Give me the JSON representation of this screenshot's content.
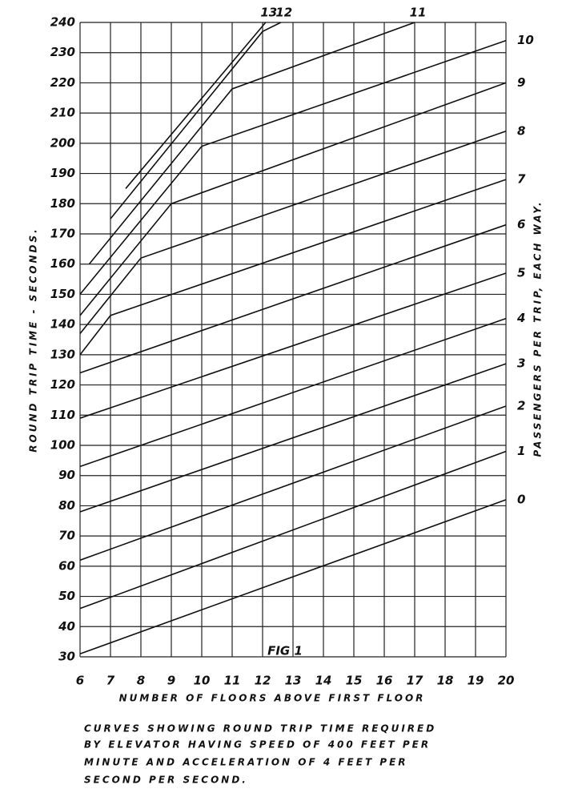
{
  "chart_data": {
    "type": "line",
    "annotation": "FIG 1",
    "x_label": "NUMBER OF FLOORS ABOVE FIRST FLOOR",
    "y_label": "ROUND TRIP TIME - SECONDS.",
    "y2_label": "PASSENGERS PER TRIP, EACH WAY.",
    "caption": [
      "CURVES SHOWING ROUND TRIP TIME REQUIRED",
      "BY ELEVATOR HAVING SPEED OF 400 FEET PER",
      "MINUTE AND ACCELERATION OF 4 FEET PER",
      "SECOND PER SECOND."
    ],
    "xlim": [
      6,
      20
    ],
    "ylim": [
      30,
      240
    ],
    "xticks": [
      6,
      7,
      8,
      9,
      10,
      11,
      12,
      13,
      14,
      15,
      16,
      17,
      18,
      19,
      20
    ],
    "yticks": [
      30,
      40,
      50,
      60,
      70,
      80,
      90,
      100,
      110,
      120,
      130,
      140,
      150,
      160,
      170,
      180,
      190,
      200,
      210,
      220,
      230,
      240
    ],
    "grid": true,
    "series": [
      {
        "name": "0",
        "color": "#111111",
        "x": [
          6,
          20
        ],
        "values": [
          31,
          82
        ]
      },
      {
        "name": "1",
        "color": "#111111",
        "x": [
          6,
          20
        ],
        "values": [
          46,
          98
        ]
      },
      {
        "name": "2",
        "color": "#111111",
        "x": [
          6,
          20
        ],
        "values": [
          62,
          113
        ]
      },
      {
        "name": "3",
        "color": "#111111",
        "x": [
          6,
          20
        ],
        "values": [
          78,
          127
        ]
      },
      {
        "name": "4",
        "color": "#111111",
        "x": [
          6,
          20
        ],
        "values": [
          93,
          142
        ]
      },
      {
        "name": "5",
        "color": "#111111",
        "x": [
          6,
          20
        ],
        "values": [
          109,
          157
        ]
      },
      {
        "name": "6",
        "color": "#111111",
        "x": [
          6,
          20
        ],
        "values": [
          124,
          173
        ]
      },
      {
        "name": "7",
        "color": "#111111",
        "x": [
          6,
          7,
          20
        ],
        "values": [
          130,
          143,
          188
        ]
      },
      {
        "name": "8",
        "color": "#111111",
        "x": [
          6,
          8,
          20
        ],
        "values": [
          137,
          162,
          204
        ]
      },
      {
        "name": "9",
        "color": "#111111",
        "x": [
          6,
          9,
          20
        ],
        "values": [
          143,
          180,
          220
        ]
      },
      {
        "name": "10",
        "color": "#111111",
        "x": [
          6,
          10,
          20
        ],
        "values": [
          150,
          199,
          234
        ]
      },
      {
        "name": "11",
        "color": "#111111",
        "x": [
          6.3,
          11,
          17
        ],
        "values": [
          160,
          218,
          240
        ]
      },
      {
        "name": "12",
        "color": "#111111",
        "x": [
          7,
          12,
          12.6
        ],
        "values": [
          175,
          237,
          240
        ]
      },
      {
        "name": "13",
        "color": "#111111",
        "x": [
          7.5,
          12.1
        ],
        "values": [
          185,
          240
        ]
      }
    ]
  }
}
